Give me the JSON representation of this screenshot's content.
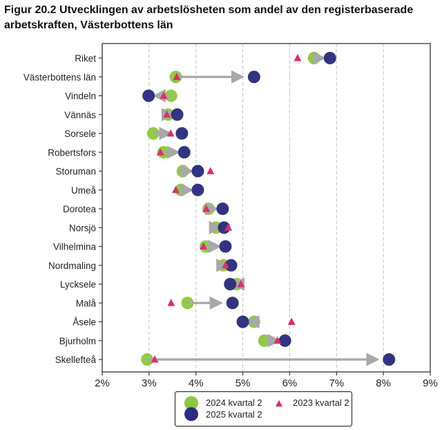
{
  "chart_data": {
    "type": "dot-arrow",
    "title": "Figur 20.2 Utvecklingen av arbetslösheten som andel av den registerbaserade arbetskraften, Västerbottens län",
    "xlabel": "",
    "ylabel": "",
    "xlim": [
      2,
      9
    ],
    "x_ticks": [
      2,
      3,
      4,
      5,
      6,
      7,
      8,
      9
    ],
    "x_tick_labels": [
      "2%",
      "3%",
      "4%",
      "5%",
      "6%",
      "7%",
      "8%",
      "9%"
    ],
    "grid": "vertical-dashed",
    "legend_position": "bottom",
    "categories": [
      "Riket",
      "Västerbottens län",
      "Vindeln",
      "Vännäs",
      "Sorsele",
      "Robertsfors",
      "Storuman",
      "Umeå",
      "Dorotea",
      "Norsjö",
      "Vilhelmina",
      "Nordmaling",
      "Lycksele",
      "Malå",
      "Åsele",
      "Bjurholm",
      "Skellefteå"
    ],
    "series": [
      {
        "name": "2024 kvartal 2",
        "marker": "circle",
        "color": "#8dc63f",
        "values": [
          6.52,
          3.57,
          3.47,
          3.4,
          3.09,
          3.31,
          3.72,
          3.68,
          4.27,
          4.43,
          4.21,
          4.59,
          4.87,
          3.82,
          5.24,
          5.46,
          2.96
        ]
      },
      {
        "name": "2025 kvartal 2",
        "marker": "circle",
        "color": "#2b2d7e",
        "values": [
          6.86,
          5.24,
          2.99,
          3.6,
          3.7,
          3.75,
          4.04,
          4.04,
          4.57,
          4.6,
          4.63,
          4.75,
          4.73,
          4.78,
          5.0,
          5.9,
          8.12
        ]
      },
      {
        "name": "2023 kvartal 2",
        "marker": "triangle",
        "color": "#d8306e",
        "values": [
          6.17,
          3.59,
          3.31,
          3.38,
          3.46,
          3.24,
          4.31,
          3.57,
          4.22,
          4.69,
          4.16,
          4.63,
          4.96,
          3.47,
          6.04,
          5.74,
          3.12
        ]
      }
    ],
    "arrow_color": "#a8a8a8",
    "legend": [
      {
        "label": "2024 kvartal 2",
        "marker": "circle",
        "color": "#8dc63f"
      },
      {
        "label": "2025 kvartal 2",
        "marker": "circle",
        "color": "#2b2d7e"
      },
      {
        "label": "2023 kvartal 2",
        "marker": "triangle",
        "color": "#d8306e"
      }
    ]
  }
}
